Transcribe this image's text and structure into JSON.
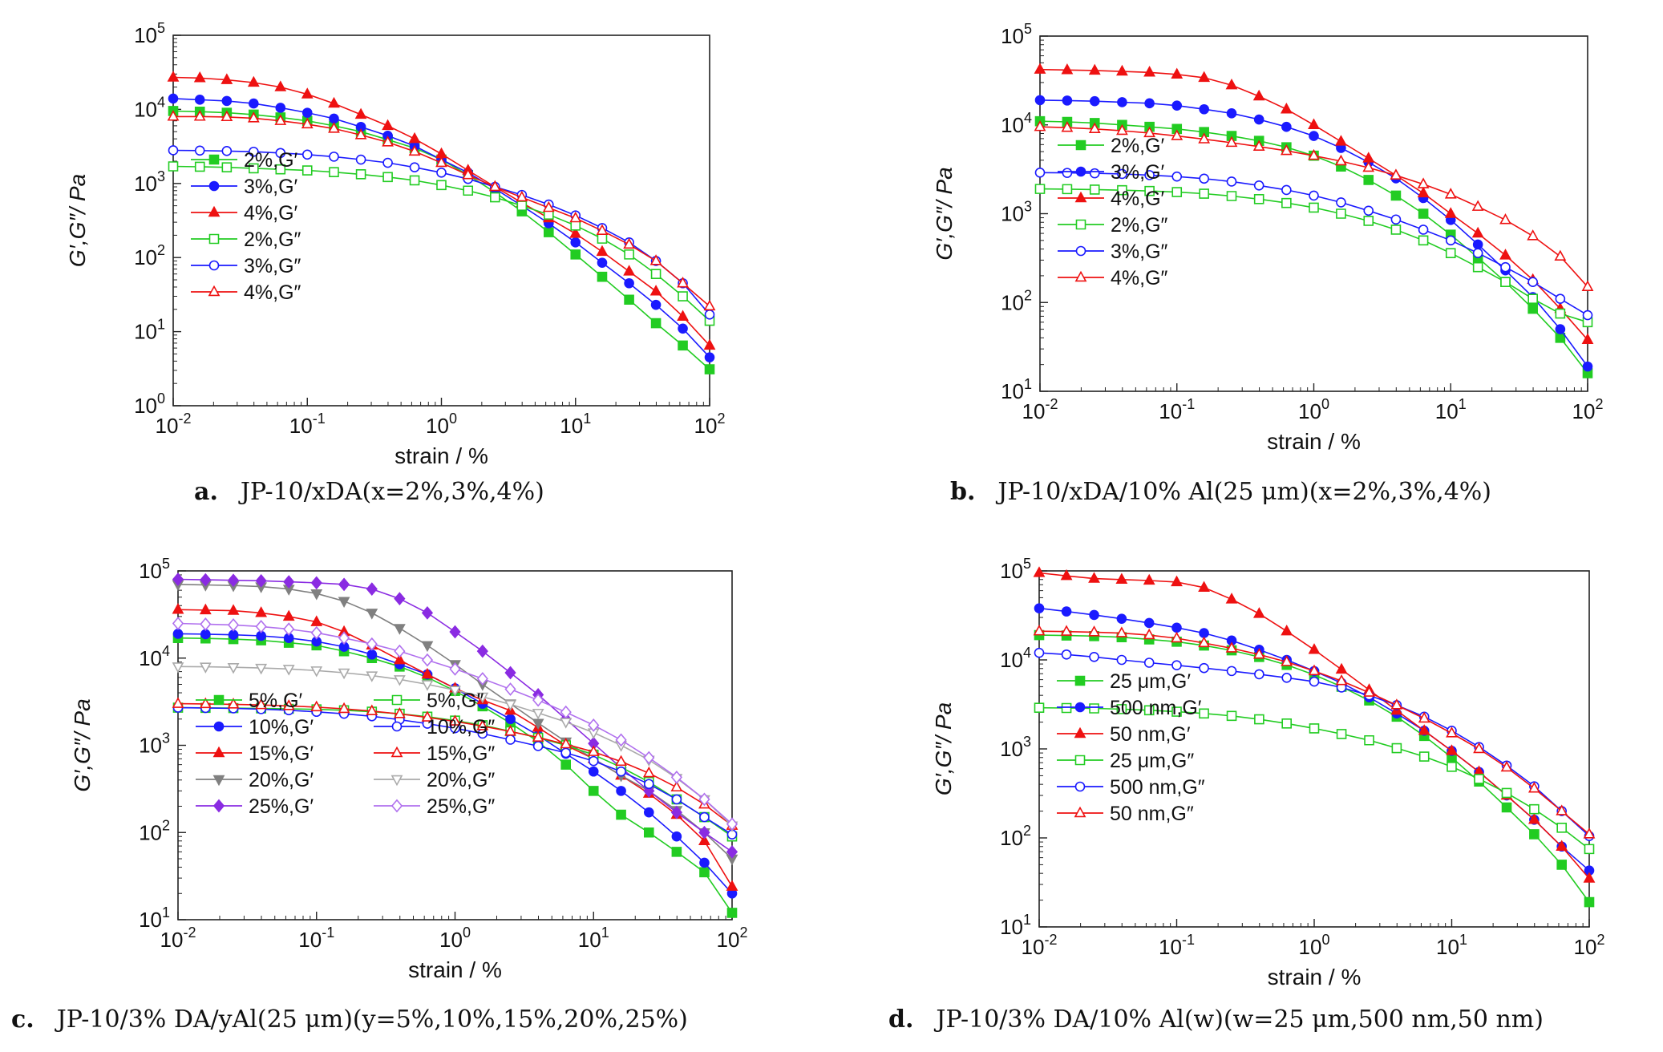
{
  "chart_data": [
    {
      "panel": "a",
      "type": "line",
      "caption_letter": "a.",
      "caption": "JP-10/xDA(x=2%,3%,4%)",
      "xlabel": "strain / %",
      "ylabel": "G′,G″/ Pa",
      "xscale": "log",
      "yscale": "log",
      "xlim": [
        0.01,
        100
      ],
      "ylim": [
        1,
        100000
      ],
      "x_ticks": [
        "10-2",
        "10-1",
        "100",
        "101",
        "102"
      ],
      "y_ticks": [
        "100",
        "101",
        "102",
        "103",
        "104",
        "105"
      ],
      "legend_columns": 1,
      "legend_position": "bottom-left",
      "x": [
        0.01,
        0.0158,
        0.0251,
        0.0398,
        0.0631,
        0.1,
        0.158,
        0.251,
        0.398,
        0.631,
        1,
        1.58,
        2.51,
        3.98,
        6.31,
        10,
        15.8,
        25.1,
        39.8,
        63.1,
        100
      ],
      "series": [
        {
          "name": "2%,G′",
          "color": "#22cc22",
          "marker": "square",
          "filled": true,
          "values": [
            9500,
            9300,
            9000,
            8500,
            7800,
            7000,
            6000,
            5000,
            3900,
            3000,
            2100,
            1300,
            760,
            420,
            220,
            110,
            55,
            27,
            13,
            6.5,
            3.1
          ]
        },
        {
          "name": "3%,G′",
          "color": "#1a1aff",
          "marker": "circle",
          "filled": true,
          "values": [
            14000,
            13500,
            13000,
            12000,
            10500,
            9000,
            7500,
            5800,
            4400,
            3200,
            2100,
            1400,
            850,
            500,
            290,
            160,
            85,
            45,
            23,
            11,
            4.5
          ]
        },
        {
          "name": "4%,G′",
          "color": "#ee1111",
          "marker": "triangle",
          "filled": true,
          "values": [
            27000,
            26500,
            25000,
            23000,
            20000,
            16000,
            12000,
            8500,
            6000,
            4000,
            2500,
            1500,
            900,
            550,
            340,
            210,
            120,
            65,
            35,
            16,
            6.5
          ]
        },
        {
          "name": "2%,G″",
          "color": "#22cc22",
          "marker": "square",
          "filled": false,
          "values": [
            1700,
            1680,
            1650,
            1600,
            1550,
            1500,
            1420,
            1330,
            1220,
            1100,
            950,
            800,
            650,
            500,
            380,
            270,
            180,
            110,
            60,
            30,
            14
          ]
        },
        {
          "name": "3%,G″",
          "color": "#1a1aff",
          "marker": "circle",
          "filled": false,
          "values": [
            2800,
            2780,
            2740,
            2680,
            2580,
            2450,
            2300,
            2100,
            1900,
            1650,
            1400,
            1150,
            900,
            700,
            520,
            370,
            250,
            160,
            90,
            45,
            17
          ]
        },
        {
          "name": "4%,G″",
          "color": "#ee1111",
          "marker": "triangle",
          "filled": false,
          "values": [
            8000,
            8000,
            7900,
            7600,
            7000,
            6300,
            5500,
            4500,
            3600,
            2700,
            1900,
            1300,
            900,
            650,
            470,
            340,
            230,
            150,
            90,
            45,
            22
          ]
        }
      ]
    },
    {
      "panel": "b",
      "type": "line",
      "caption_letter": "b.",
      "caption": "JP-10/xDA/10% Al(25 μm)(x=2%,3%,4%)",
      "xlabel": "strain / %",
      "ylabel": "G′,G″/ Pa",
      "xscale": "log",
      "yscale": "log",
      "xlim": [
        0.01,
        100
      ],
      "ylim": [
        10,
        100000
      ],
      "x_ticks": [
        "10-2",
        "10-1",
        "100",
        "101",
        "102"
      ],
      "y_ticks": [
        "101",
        "102",
        "103",
        "104",
        "105"
      ],
      "legend_columns": 1,
      "legend_position": "bottom-left",
      "x": [
        0.01,
        0.0158,
        0.0251,
        0.0398,
        0.0631,
        0.1,
        0.158,
        0.251,
        0.398,
        0.631,
        1,
        1.58,
        2.51,
        3.98,
        6.31,
        10,
        15.8,
        25.1,
        39.8,
        63.1,
        100
      ],
      "series": [
        {
          "name": "2%,G′",
          "color": "#22cc22",
          "marker": "square",
          "filled": true,
          "values": [
            11000,
            10800,
            10500,
            10000,
            9500,
            9000,
            8300,
            7500,
            6600,
            5600,
            4500,
            3400,
            2400,
            1600,
            1000,
            580,
            320,
            170,
            85,
            40,
            16
          ]
        },
        {
          "name": "3%,G′",
          "color": "#1a1aff",
          "marker": "circle",
          "filled": true,
          "values": [
            19000,
            18800,
            18500,
            18000,
            17500,
            16500,
            15000,
            13500,
            11500,
            9500,
            7500,
            5500,
            3800,
            2500,
            1500,
            850,
            450,
            230,
            115,
            50,
            19
          ]
        },
        {
          "name": "4%,G′",
          "color": "#ee1111",
          "marker": "triangle",
          "filled": true,
          "values": [
            42000,
            41500,
            41000,
            40000,
            39000,
            37000,
            34000,
            28000,
            21000,
            15000,
            10000,
            6500,
            4200,
            2700,
            1700,
            1000,
            600,
            340,
            180,
            85,
            38
          ]
        },
        {
          "name": "2%,G″",
          "color": "#22cc22",
          "marker": "square",
          "filled": false,
          "values": [
            1900,
            1890,
            1870,
            1840,
            1800,
            1750,
            1680,
            1580,
            1460,
            1320,
            1170,
            1000,
            830,
            660,
            500,
            360,
            250,
            170,
            110,
            75,
            60
          ]
        },
        {
          "name": "3%,G″",
          "color": "#1a1aff",
          "marker": "circle",
          "filled": false,
          "values": [
            2900,
            2880,
            2850,
            2800,
            2720,
            2620,
            2480,
            2300,
            2080,
            1850,
            1600,
            1340,
            1080,
            860,
            660,
            500,
            360,
            250,
            170,
            110,
            72
          ]
        },
        {
          "name": "4%,G″",
          "color": "#ee1111",
          "marker": "triangle",
          "filled": false,
          "values": [
            9500,
            9300,
            9000,
            8600,
            8100,
            7500,
            6900,
            6300,
            5700,
            5100,
            4500,
            3900,
            3300,
            2700,
            2150,
            1650,
            1200,
            850,
            560,
            330,
            150
          ]
        }
      ]
    },
    {
      "panel": "c",
      "type": "line",
      "caption_letter": "c.",
      "caption": "JP-10/3% DA/yAl(25 μm)(y=5%,10%,15%,20%,25%)",
      "xlabel": "strain / %",
      "ylabel": "G′,G″/ Pa",
      "xscale": "log",
      "yscale": "log",
      "xlim": [
        0.01,
        100
      ],
      "ylim": [
        10,
        100000
      ],
      "x_ticks": [
        "10-2",
        "10-1",
        "100",
        "101",
        "102"
      ],
      "y_ticks": [
        "101",
        "102",
        "103",
        "104",
        "105"
      ],
      "legend_columns": 2,
      "legend_position": "bottom-left",
      "x": [
        0.01,
        0.0158,
        0.0251,
        0.0398,
        0.0631,
        0.1,
        0.158,
        0.251,
        0.398,
        0.631,
        1,
        1.58,
        2.51,
        3.98,
        6.31,
        10,
        15.8,
        25.1,
        39.8,
        63.1,
        100
      ],
      "series": [
        {
          "name": "5%,G′",
          "color": "#22cc22",
          "marker": "square",
          "filled": true,
          "values": [
            17000,
            16800,
            16500,
            16000,
            15000,
            14000,
            12000,
            10000,
            8000,
            6000,
            4200,
            2800,
            1800,
            1100,
            600,
            300,
            160,
            100,
            60,
            35,
            12
          ]
        },
        {
          "name": "10%,G′",
          "color": "#1a1aff",
          "marker": "circle",
          "filled": true,
          "values": [
            19000,
            18800,
            18500,
            18000,
            17000,
            15500,
            13500,
            11000,
            8500,
            6500,
            4500,
            3000,
            2000,
            1300,
            800,
            500,
            300,
            170,
            90,
            45,
            20
          ]
        },
        {
          "name": "15%,G′",
          "color": "#ee1111",
          "marker": "triangle",
          "filled": true,
          "values": [
            36000,
            35500,
            35000,
            33000,
            30000,
            26000,
            20000,
            14000,
            9500,
            6500,
            4500,
            3300,
            2500,
            1600,
            1000,
            700,
            450,
            280,
            160,
            80,
            24
          ]
        },
        {
          "name": "20%,G′",
          "color": "#808080",
          "marker": "triangle-down",
          "filled": true,
          "values": [
            70000,
            69000,
            68000,
            66000,
            62000,
            55000,
            45000,
            33000,
            22000,
            14000,
            8500,
            5000,
            3000,
            1800,
            1100,
            700,
            450,
            300,
            180,
            100,
            50
          ]
        },
        {
          "name": "25%,G′",
          "color": "#8a2be2",
          "marker": "diamond",
          "filled": true,
          "values": [
            80000,
            79000,
            78000,
            77000,
            75000,
            73000,
            70000,
            62000,
            48000,
            33000,
            20000,
            12000,
            6800,
            3800,
            2000,
            1050,
            550,
            300,
            170,
            100,
            60
          ]
        },
        {
          "name": "5%,G″",
          "color": "#22cc22",
          "marker": "square",
          "filled": false,
          "values": [
            2700,
            2690,
            2670,
            2650,
            2620,
            2580,
            2520,
            2430,
            2300,
            2130,
            1920,
            1700,
            1450,
            1220,
            1000,
            780,
            560,
            380,
            240,
            150,
            90
          ]
        },
        {
          "name": "10%,G″",
          "color": "#1a1aff",
          "marker": "circle",
          "filled": false,
          "values": [
            2700,
            2680,
            2650,
            2600,
            2520,
            2420,
            2300,
            2150,
            1970,
            1770,
            1570,
            1360,
            1160,
            980,
            820,
            660,
            500,
            360,
            240,
            150,
            95
          ]
        },
        {
          "name": "15%,G″",
          "color": "#ee1111",
          "marker": "triangle",
          "filled": false,
          "values": [
            3000,
            2980,
            2950,
            2900,
            2830,
            2740,
            2620,
            2470,
            2290,
            2090,
            1880,
            1660,
            1440,
            1230,
            1030,
            840,
            650,
            480,
            330,
            210,
            120
          ]
        },
        {
          "name": "20%,G″",
          "color": "#aaaaaa",
          "marker": "triangle-down",
          "filled": false,
          "values": [
            8000,
            7950,
            7850,
            7700,
            7500,
            7200,
            6800,
            6300,
            5700,
            5000,
            4300,
            3600,
            2950,
            2350,
            1850,
            1400,
            1000,
            680,
            420,
            240,
            120
          ]
        },
        {
          "name": "25%,G″",
          "color": "#b070ee",
          "marker": "diamond",
          "filled": false,
          "values": [
            25000,
            24500,
            24000,
            23000,
            21500,
            19500,
            17000,
            14500,
            12000,
            9500,
            7500,
            5800,
            4400,
            3300,
            2400,
            1700,
            1150,
            720,
            430,
            240,
            125
          ]
        }
      ]
    },
    {
      "panel": "d",
      "type": "line",
      "caption_letter": "d.",
      "caption": "JP-10/3% DA/10% Al(w)(w=25 μm,500 nm,50 nm)",
      "xlabel": "strain / %",
      "ylabel": "G′,G″/ Pa",
      "xscale": "log",
      "yscale": "log",
      "xlim": [
        0.01,
        100
      ],
      "ylim": [
        10,
        100000
      ],
      "x_ticks": [
        "10-2",
        "10-1",
        "100",
        "101",
        "102"
      ],
      "y_ticks": [
        "101",
        "102",
        "103",
        "104",
        "105"
      ],
      "legend_columns": 1,
      "legend_position": "bottom-left",
      "x": [
        0.01,
        0.0158,
        0.0251,
        0.0398,
        0.0631,
        0.1,
        0.158,
        0.251,
        0.398,
        0.631,
        1,
        1.58,
        2.51,
        3.98,
        6.31,
        10,
        15.8,
        25.1,
        39.8,
        63.1,
        100
      ],
      "series": [
        {
          "name": "25 μm,G′",
          "color": "#22cc22",
          "marker": "square",
          "filled": true,
          "values": [
            19000,
            18800,
            18500,
            18000,
            17000,
            16000,
            14500,
            12800,
            10800,
            8800,
            6800,
            5000,
            3500,
            2300,
            1400,
            800,
            430,
            220,
            110,
            50,
            19
          ]
        },
        {
          "name": "500 nm,G′",
          "color": "#1a1aff",
          "marker": "circle",
          "filled": true,
          "values": [
            38000,
            35000,
            32000,
            29000,
            26000,
            23000,
            20000,
            16500,
            13000,
            10000,
            7500,
            5500,
            3800,
            2500,
            1600,
            950,
            550,
            300,
            160,
            80,
            43
          ]
        },
        {
          "name": "50 nm,G′",
          "color": "#ee1111",
          "marker": "triangle",
          "filled": true,
          "values": [
            95000,
            88000,
            82000,
            80000,
            78000,
            75000,
            65000,
            48000,
            33000,
            21000,
            13000,
            7800,
            4600,
            2700,
            1600,
            950,
            550,
            300,
            160,
            80,
            35
          ]
        },
        {
          "name": "25 μm,G″",
          "color": "#22cc22",
          "marker": "square",
          "filled": false,
          "values": [
            2900,
            2880,
            2850,
            2800,
            2720,
            2620,
            2500,
            2350,
            2150,
            1930,
            1700,
            1470,
            1250,
            1020,
            820,
            630,
            460,
            320,
            210,
            130,
            75
          ]
        },
        {
          "name": "500 nm,G″",
          "color": "#1a1aff",
          "marker": "circle",
          "filled": false,
          "values": [
            12000,
            11500,
            10800,
            10000,
            9300,
            8700,
            8100,
            7500,
            6900,
            6300,
            5700,
            4900,
            4000,
            3100,
            2300,
            1600,
            1050,
            650,
            380,
            200,
            105
          ]
        },
        {
          "name": "50 nm,G″",
          "color": "#ee1111",
          "marker": "triangle",
          "filled": false,
          "values": [
            21000,
            20800,
            20500,
            20000,
            19000,
            17500,
            15500,
            13500,
            11500,
            9500,
            7500,
            5800,
            4300,
            3100,
            2200,
            1500,
            1000,
            620,
            360,
            200,
            110
          ]
        }
      ]
    }
  ]
}
